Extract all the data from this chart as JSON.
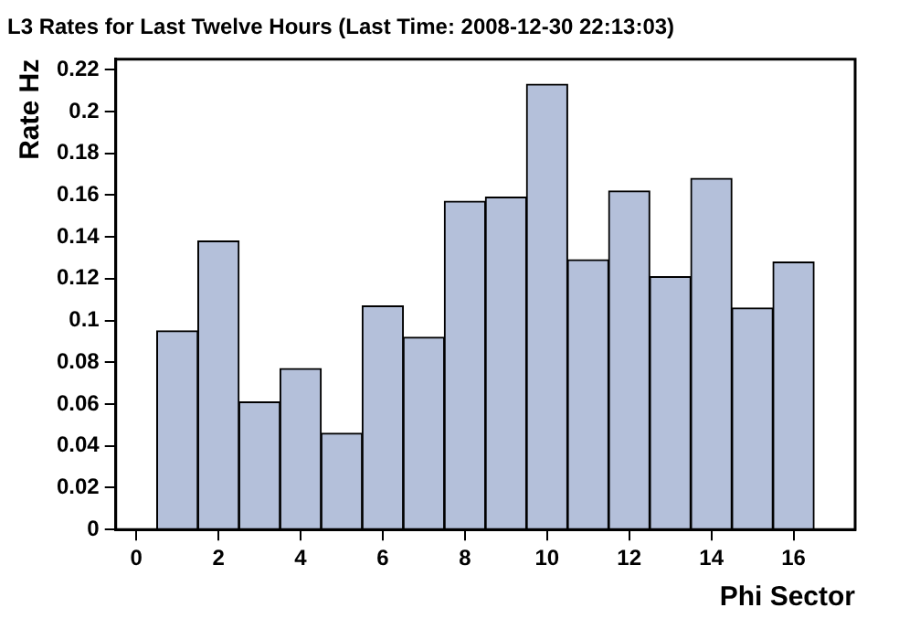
{
  "chart_data": {
    "type": "histogram",
    "title": "L3 Rates for Last Twelve Hours (Last Time: 2008-12-30 22:13:03)",
    "xlabel": "Phi Sector",
    "ylabel": "Rate Hz",
    "bins": [
      0.5,
      1.5,
      2.5,
      3.5,
      4.5,
      5.5,
      6.5,
      7.5,
      8.5,
      9.5,
      10.5,
      11.5,
      12.5,
      13.5,
      14.5,
      15.5,
      16.5
    ],
    "values": [
      0.095,
      0.138,
      0.061,
      0.077,
      0.046,
      0.107,
      0.092,
      0.157,
      0.159,
      0.213,
      0.129,
      0.162,
      0.121,
      0.168,
      0.106,
      0.128
    ],
    "color": "#b4c0da",
    "xlim": [
      -0.5,
      17.5
    ],
    "xticks": [
      0,
      2,
      4,
      6,
      8,
      10,
      12,
      14,
      16
    ],
    "ylim": [
      0,
      0.225
    ],
    "yticks": [
      0,
      0.02,
      0.04,
      0.06,
      0.08,
      0.1,
      0.12,
      0.14,
      0.16,
      0.18,
      0.2,
      0.22
    ],
    "grid": false,
    "legend": false
  }
}
